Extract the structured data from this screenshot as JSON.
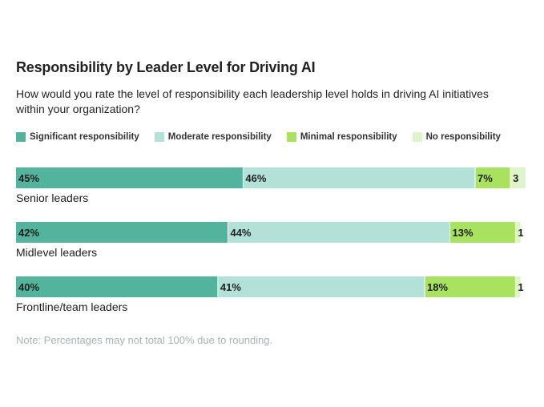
{
  "chart_data": {
    "type": "bar",
    "orientation": "horizontal-stacked",
    "title": "Responsibility by Leader Level for Driving AI",
    "subtitle": "How would you rate the level of responsibility each leadership level holds in driving AI initiatives within your organization?",
    "categories": [
      "Senior leaders",
      "Midlevel leaders",
      "Frontline/team leaders"
    ],
    "series": [
      {
        "name": "Significant responsibility",
        "color": "#52b49c",
        "values": [
          45,
          42,
          40
        ],
        "labels": [
          "45%",
          "42%",
          "40%"
        ]
      },
      {
        "name": "Moderate responsibility",
        "color": "#b1e1d7",
        "values": [
          46,
          44,
          41
        ],
        "labels": [
          "46%",
          "44%",
          "41%"
        ]
      },
      {
        "name": "Minimal responsibility",
        "color": "#a8e25f",
        "values": [
          7,
          13,
          18
        ],
        "labels": [
          "7%",
          "13%",
          "18%"
        ]
      },
      {
        "name": "No responsibility",
        "color": "#def4cb",
        "values": [
          3,
          1,
          1
        ],
        "labels": [
          "3",
          "1",
          "1"
        ]
      }
    ],
    "xlim": [
      0,
      101
    ],
    "legend_position": "top",
    "grid": false,
    "note": "Note: Percentages may not total 100% due to rounding."
  }
}
